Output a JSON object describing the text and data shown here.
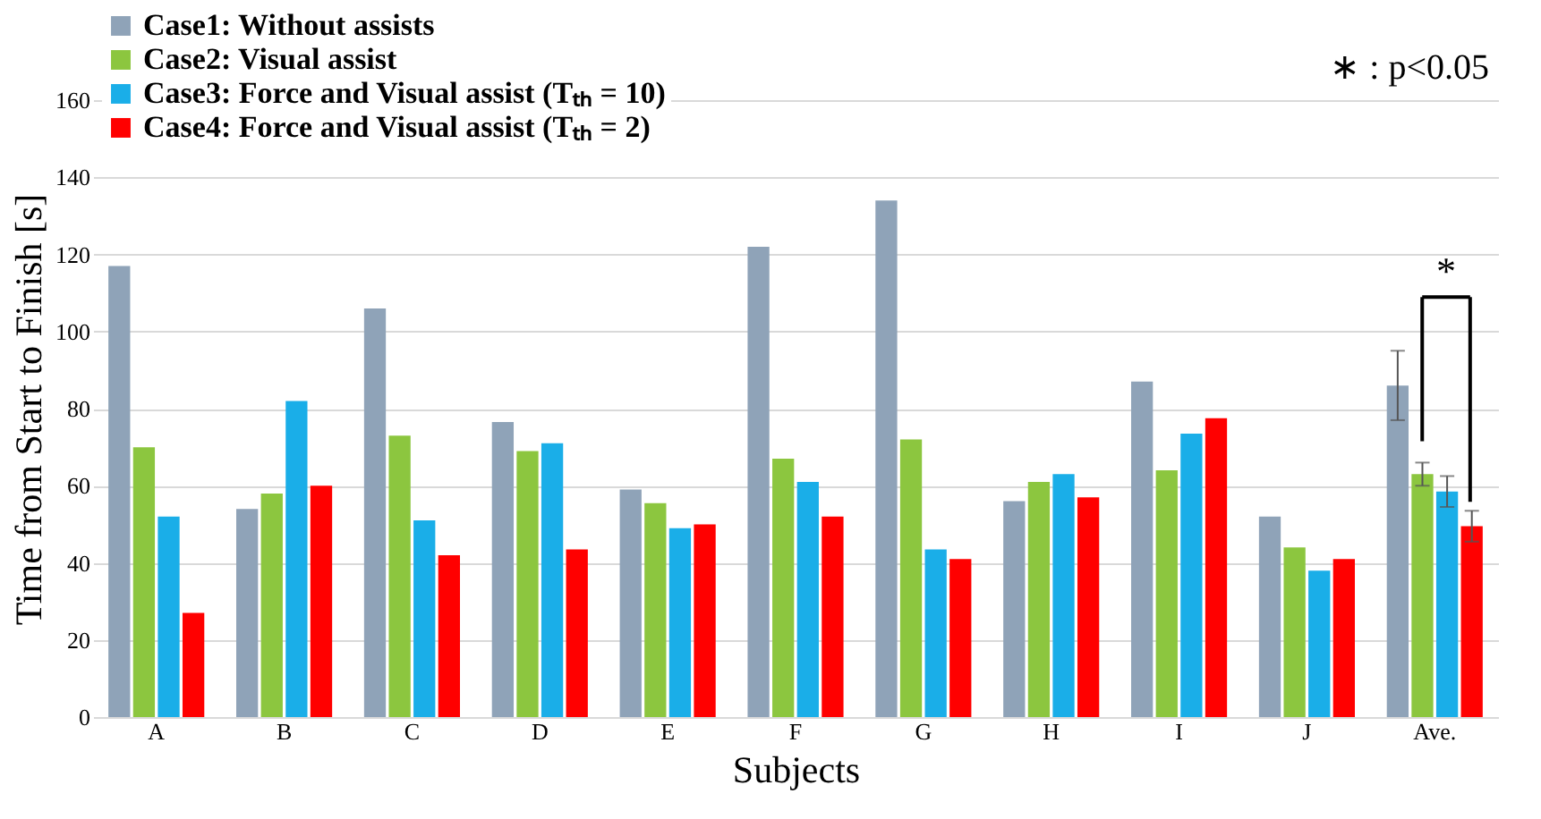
{
  "chart_data": {
    "type": "bar",
    "xlabel": "Subjects",
    "ylabel": "Time from Start to Finish [s]",
    "categories": [
      "A",
      "B",
      "C",
      "D",
      "E",
      "F",
      "G",
      "H",
      "I",
      "J",
      "Ave."
    ],
    "series": [
      {
        "name": "Case1: Without assists",
        "color": "#8fa3b8",
        "values": [
          117,
          54,
          106,
          76.5,
          59,
          122,
          134,
          56,
          87,
          52,
          86
        ],
        "errors": [
          null,
          null,
          null,
          null,
          null,
          null,
          null,
          null,
          null,
          null,
          9
        ]
      },
      {
        "name": "Case2: Visual assist",
        "color": "#8cc63f",
        "values": [
          70,
          58,
          73,
          69,
          55.5,
          67,
          72,
          61,
          64,
          44,
          63
        ],
        "errors": [
          null,
          null,
          null,
          null,
          null,
          null,
          null,
          null,
          null,
          null,
          3
        ]
      },
      {
        "name": "Case3: Force and Visual assist (Tₜₕ = 10)",
        "color": "#1aaee8",
        "values": [
          52,
          82,
          51,
          71,
          49,
          61,
          43.5,
          63,
          73.5,
          38,
          58.5
        ],
        "errors": [
          null,
          null,
          null,
          null,
          null,
          null,
          null,
          null,
          null,
          null,
          4
        ]
      },
      {
        "name": "Case4: Force and Visual assist (Tₜₕ = 2)",
        "color": "#ff0000",
        "values": [
          27,
          60,
          42,
          43.5,
          50,
          52,
          41,
          57,
          77.5,
          41,
          49.5
        ],
        "errors": [
          null,
          null,
          null,
          null,
          null,
          null,
          null,
          null,
          null,
          null,
          4
        ]
      }
    ],
    "ylim": [
      0,
      160
    ],
    "yticks": [
      0,
      20,
      40,
      60,
      80,
      100,
      120,
      140,
      160
    ],
    "grid": "y",
    "legend": "top left",
    "annotations": [
      "∗ : p<0.05",
      "*"
    ]
  }
}
